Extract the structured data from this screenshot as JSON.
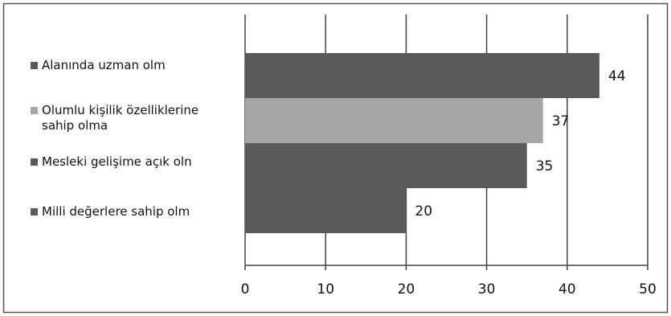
{
  "chart_data": {
    "type": "bar",
    "orientation": "horizontal",
    "categories": [
      "Alanında uzman olm",
      "Olumlu kişilik özelliklerine\nsahip olma",
      "Mesleki gelişime açık oln",
      "Milli değerlere sahip olm"
    ],
    "values": [
      44,
      37,
      35,
      20
    ],
    "data_labels": [
      "44",
      "37",
      "35",
      "20"
    ],
    "colors": [
      "#5a5a5a",
      "#a6a6a6",
      "#5a5a5a",
      "#5a5a5a"
    ],
    "xlim": [
      0,
      50
    ],
    "x_ticks": [
      "0",
      "10",
      "20",
      "30",
      "40",
      "50"
    ],
    "grid": true,
    "legend_position": "left",
    "title": "",
    "xlabel": "",
    "ylabel": ""
  }
}
